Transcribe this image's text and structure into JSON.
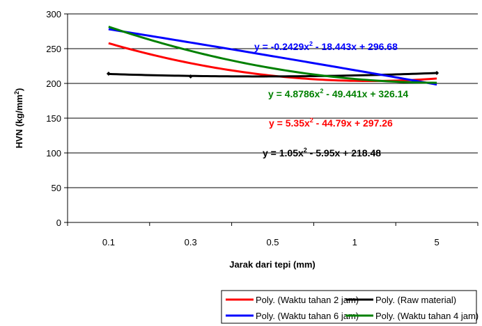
{
  "chart_data": {
    "type": "line",
    "xlabel": "Jarak dari tepi (mm)",
    "ylabel_parts": [
      "HVN (kg/mm",
      "2",
      ")"
    ],
    "categories": [
      "0.1",
      "0.3",
      "0.5",
      "1",
      "5"
    ],
    "ylim": [
      0,
      300
    ],
    "yticks": [
      0,
      50,
      100,
      150,
      200,
      250,
      300
    ],
    "grid": "horizontal",
    "legend_position": "bottom",
    "series": [
      {
        "name": "Poly. (Waktu tahan 2 jam)",
        "color": "#ff0000",
        "coeffs": [
          5.35,
          -44.79,
          297.26
        ],
        "equation_parts": [
          "y = 5.35x",
          "2",
          " - 44.79x + 297.26"
        ]
      },
      {
        "name": "Poly. (Raw material)",
        "color": "#000000",
        "coeffs": [
          1.05,
          -5.95,
          218.48
        ],
        "equation_parts": [
          "y = 1.05x",
          "2",
          " - 5.95x + 218.48"
        ]
      },
      {
        "name": "Poly. (Waktu tahan 6 jam)",
        "color": "#0000ff",
        "coeffs": [
          -0.2429,
          -18.443,
          296.68
        ],
        "equation_parts": [
          "y = -0.2429x",
          "2",
          " - 18.443x + 296.68"
        ]
      },
      {
        "name": "Poly. (Waktu tahan 4 jam)",
        "color": "#008000",
        "coeffs": [
          4.8786,
          -49.441,
          326.14
        ],
        "equation_parts": [
          "y = 4.8786x",
          "2",
          " - 49.441x + 326.14"
        ]
      }
    ],
    "points": [
      {
        "series": "Poly. (Raw material)",
        "x": "0.1",
        "y": 214
      },
      {
        "series": "Poly. (Raw material)",
        "x": "0.3",
        "y": 210
      },
      {
        "series": "Poly. (Raw material)",
        "x": "5",
        "y": 215
      }
    ]
  }
}
